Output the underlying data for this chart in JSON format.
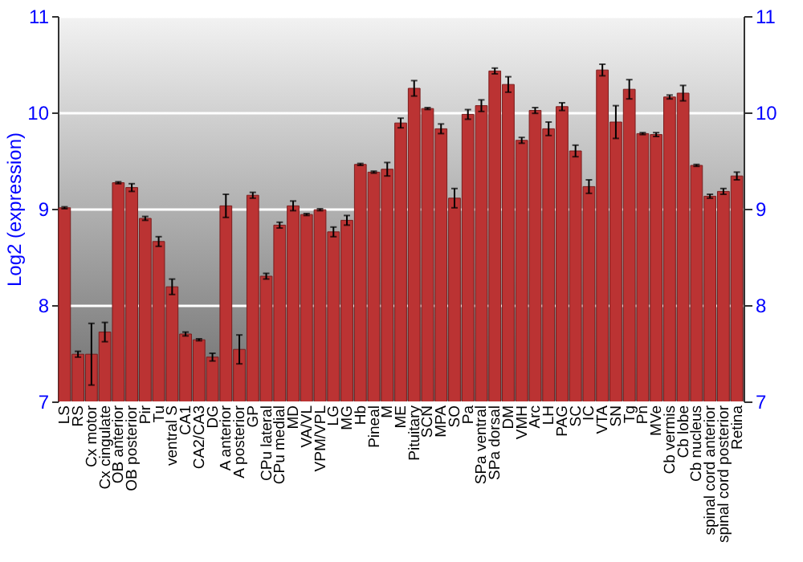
{
  "chart_data": {
    "type": "bar",
    "ylabel": "Log2 (expression)",
    "categories": [
      "LS",
      "RS",
      "Cx motor",
      "Cx cingulate",
      "OB anterior",
      "OB posterior",
      "Pir",
      "Tu",
      "ventral S",
      "CA1",
      "CA2/CA3",
      "DG",
      "A anterior",
      "A posterior",
      "GP",
      "CPu lateral",
      "CPu medial",
      "MD",
      "VA/VL",
      "VPM/VPL",
      "LG",
      "MG",
      "Hb",
      "Pineal",
      "M",
      "ME",
      "Pituitary",
      "SCN",
      "MPA",
      "SO",
      "Pa",
      "SPa ventral",
      "SPa dorsal",
      "DM",
      "VMH",
      "Arc",
      "LH",
      "PAG",
      "SC",
      "IC",
      "VTA",
      "SN",
      "Tg",
      "Pn",
      "MVe",
      "Cb vermis",
      "Cb lobe",
      "Cb nucleus",
      "spinal cord anterior",
      "spinal cord posterior",
      "Retina"
    ],
    "values": [
      9.01,
      7.49,
      7.49,
      7.72,
      9.27,
      9.22,
      8.9,
      8.66,
      8.19,
      7.7,
      7.64,
      7.46,
      9.03,
      7.54,
      9.14,
      8.3,
      8.83,
      9.03,
      8.94,
      8.99,
      8.76,
      8.88,
      9.46,
      9.38,
      9.41,
      9.89,
      10.25,
      10.04,
      9.83,
      9.11,
      9.98,
      10.07,
      10.43,
      10.29,
      9.71,
      10.02,
      9.83,
      10.06,
      9.6,
      9.23,
      10.44,
      9.9,
      10.24,
      9.78,
      9.77,
      10.16,
      10.2,
      9.45,
      9.13,
      9.18,
      9.34
    ],
    "errors": [
      0.01,
      0.03,
      0.32,
      0.1,
      0.01,
      0.04,
      0.02,
      0.05,
      0.08,
      0.02,
      0.01,
      0.04,
      0.12,
      0.15,
      0.03,
      0.03,
      0.03,
      0.05,
      0.01,
      0.01,
      0.05,
      0.05,
      0.01,
      0.01,
      0.07,
      0.05,
      0.08,
      0.01,
      0.05,
      0.1,
      0.05,
      0.06,
      0.03,
      0.08,
      0.03,
      0.03,
      0.07,
      0.04,
      0.06,
      0.07,
      0.06,
      0.17,
      0.1,
      0.01,
      0.02,
      0.02,
      0.08,
      0.01,
      0.02,
      0.03,
      0.04
    ],
    "color": "#bb3333",
    "ylim": [
      7,
      11
    ],
    "yticks": [
      7,
      8,
      9,
      10,
      11
    ],
    "y2lim": [
      7,
      11
    ],
    "y2ticks": [
      7,
      8,
      9,
      10,
      11
    ],
    "grid": "y"
  }
}
